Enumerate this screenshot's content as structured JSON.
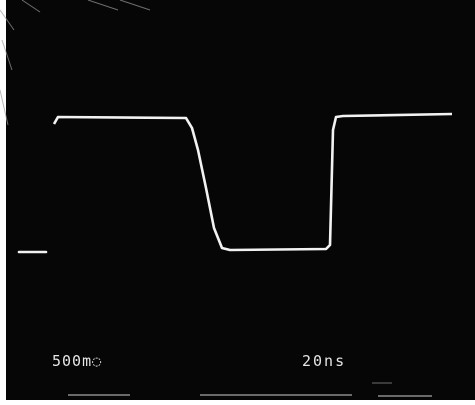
{
  "scope": {
    "volts_per_div": "500m◌",
    "time_per_div": "20ns"
  },
  "colors": {
    "screen": "#060606",
    "trace": "#f2f2f2",
    "frame": "#ffffff"
  }
}
